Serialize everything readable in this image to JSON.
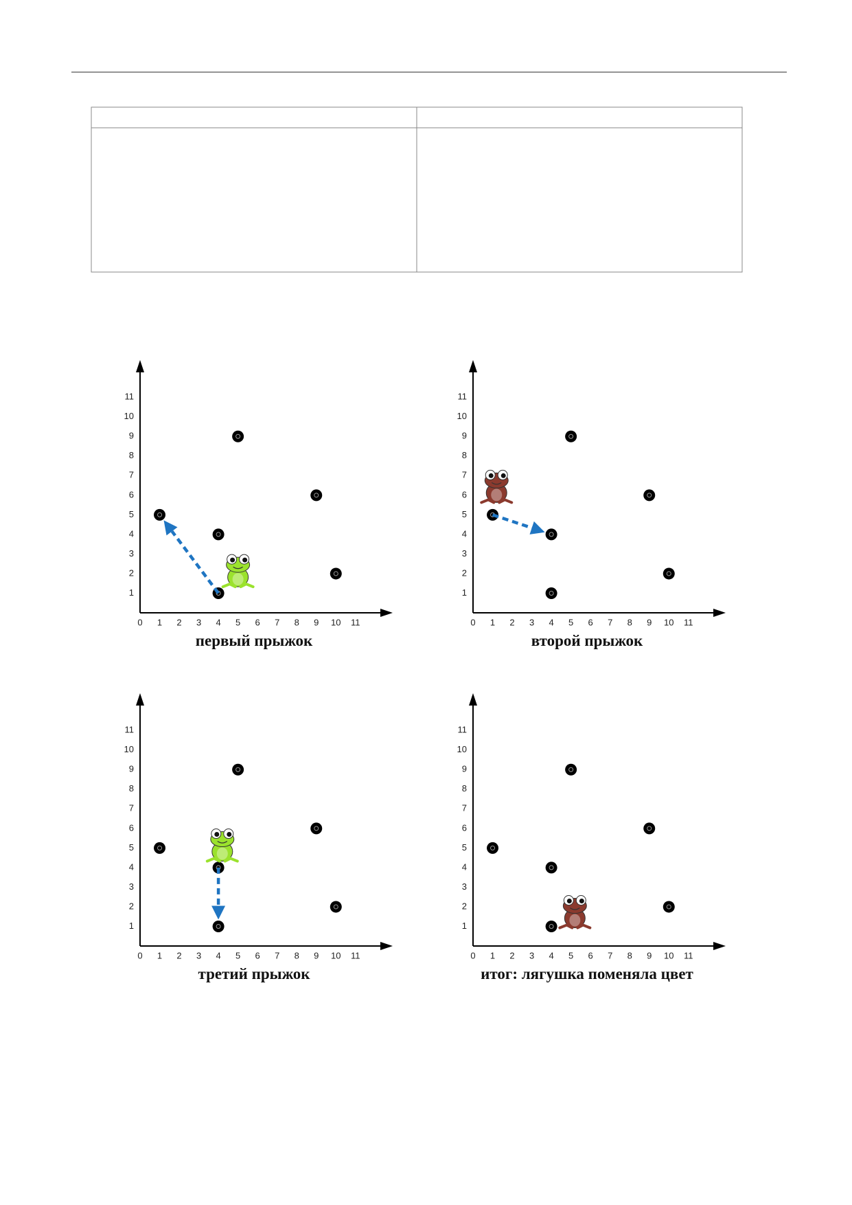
{
  "chart_data": [
    {
      "type": "scatter",
      "title": "первый прыжок",
      "x": [
        5,
        9,
        1,
        4,
        10,
        4
      ],
      "y": [
        9,
        6,
        5,
        4,
        2,
        1
      ],
      "color": "#000000",
      "xlim": [
        0,
        12.9
      ],
      "ylim": [
        0,
        12.9
      ],
      "xticks": [
        0,
        1,
        2,
        3,
        4,
        5,
        6,
        7,
        8,
        9,
        10,
        11
      ],
      "yticks": [
        1,
        2,
        3,
        4,
        5,
        6,
        7,
        8,
        9,
        10,
        11
      ],
      "frog": {
        "x": 5,
        "y": 2.1,
        "color": "#9be22d"
      },
      "arrow": {
        "from": [
          4,
          1
        ],
        "to": [
          1,
          5
        ],
        "color": "#1f75c2"
      }
    },
    {
      "type": "scatter",
      "title": "второй прыжок",
      "x": [
        5,
        9,
        1,
        4,
        10,
        4
      ],
      "y": [
        9,
        6,
        5,
        4,
        2,
        1
      ],
      "color": "#000000",
      "xlim": [
        0,
        12.9
      ],
      "ylim": [
        0,
        12.9
      ],
      "xticks": [
        0,
        1,
        2,
        3,
        4,
        5,
        6,
        7,
        8,
        9,
        10,
        11
      ],
      "yticks": [
        1,
        2,
        3,
        4,
        5,
        6,
        7,
        8,
        9,
        10,
        11
      ],
      "frog": {
        "x": 1.2,
        "y": 6.4,
        "color": "#8b3a2e"
      },
      "arrow": {
        "from": [
          1,
          5
        ],
        "to": [
          4,
          4
        ],
        "color": "#1f75c2"
      }
    },
    {
      "type": "scatter",
      "title": "третий прыжок",
      "x": [
        5,
        9,
        1,
        4,
        10,
        4
      ],
      "y": [
        9,
        6,
        5,
        4,
        2,
        1
      ],
      "color": "#000000",
      "xlim": [
        0,
        12.9
      ],
      "ylim": [
        0,
        12.9
      ],
      "xticks": [
        0,
        1,
        2,
        3,
        4,
        5,
        6,
        7,
        8,
        9,
        10,
        11
      ],
      "yticks": [
        1,
        2,
        3,
        4,
        5,
        6,
        7,
        8,
        9,
        10,
        11
      ],
      "frog": {
        "x": 4.2,
        "y": 5.1,
        "color": "#9be22d"
      },
      "arrow": {
        "from": [
          4,
          4
        ],
        "to": [
          4,
          1
        ],
        "color": "#1f75c2"
      }
    },
    {
      "type": "scatter",
      "title": "итог: лягушка поменяла цвет",
      "x": [
        5,
        9,
        1,
        4,
        10,
        4
      ],
      "y": [
        9,
        6,
        5,
        4,
        2,
        1
      ],
      "color": "#000000",
      "xlim": [
        0,
        12.9
      ],
      "ylim": [
        0,
        12.9
      ],
      "xticks": [
        0,
        1,
        2,
        3,
        4,
        5,
        6,
        7,
        8,
        9,
        10,
        11
      ],
      "yticks": [
        1,
        2,
        3,
        4,
        5,
        6,
        7,
        8,
        9,
        10,
        11
      ],
      "frog": {
        "x": 5.2,
        "y": 1.7,
        "color": "#8b3a2e"
      }
    }
  ]
}
